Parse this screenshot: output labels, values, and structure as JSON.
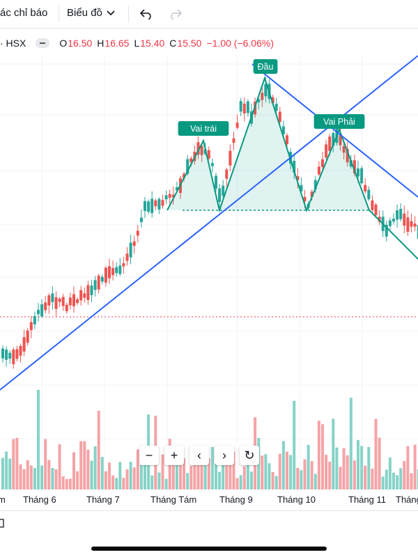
{
  "toolbar": {
    "indicators_label": "ác chỉ báo",
    "chart_type_label": "Biểu đồ",
    "undo_icon": "undo-icon",
    "redo_icon": "redo-icon"
  },
  "legend": {
    "symbol": "· HSX",
    "open_key": "O",
    "open": "16.50",
    "high_key": "H",
    "high": "16.65",
    "low_key": "L",
    "low": "15.40",
    "close_key": "C",
    "close": "15.50",
    "change": "−1.00 (−6.06%)"
  },
  "pattern_labels": {
    "left_shoulder": "Vai trái",
    "head": "Đầu",
    "right_shoulder": "Vai Phải"
  },
  "time_axis": {
    "labels": [
      "m",
      "Tháng 6",
      "Tháng 7",
      "Tháng Tám",
      "Tháng 9",
      "Tháng 10",
      "Tháng 11",
      "Tháng"
    ]
  },
  "zoom_controls": [
    "−",
    "+",
    "‹",
    "›",
    "↻"
  ],
  "colors": {
    "up": "#26a69a",
    "down": "#ef5350",
    "trendline": "#2962ff",
    "pattern": "#089981",
    "label_bg": "#089981",
    "negative_text": "#f23645"
  }
}
